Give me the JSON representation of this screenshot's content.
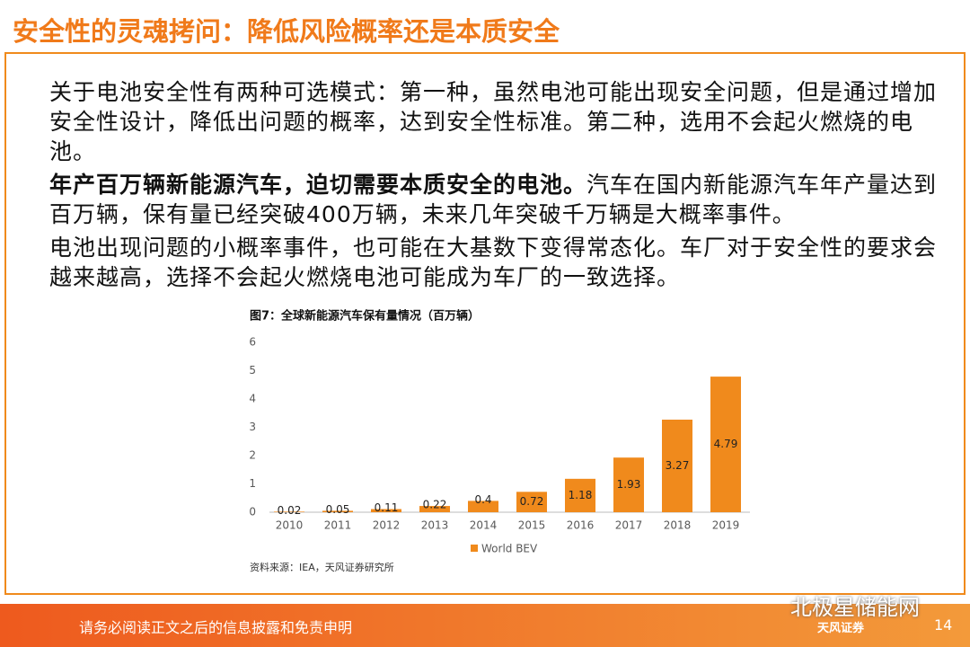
{
  "header": {
    "title": "安全性的灵魂拷问：降低风险概率还是本质安全"
  },
  "body": {
    "paragraphs": [
      {
        "text": "关于电池安全性有两种可选模式：第一种，虽然电池可能出现安全问题，但是通过增加安全性设计，降低出问题的概率，达到安全性标准。第二种，选用不会起火燃烧的电池。"
      },
      {
        "bold": "年产百万辆新能源汽车，迫切需要本质安全的电池。",
        "text": "汽车在国内新能源汽车年产量达到百万辆，保有量已经突破400万辆，未来几年突破千万辆是大概率事件。"
      },
      {
        "text": "电池出现问题的小概率事件，也可能在大基数下变得常态化。车厂对于安全性的要求会越来越高，选择不会起火燃烧电池可能成为车厂的一致选择。"
      }
    ]
  },
  "chart_data": {
    "type": "bar",
    "title": "图7：全球新能源汽车保有量情况（百万辆）",
    "categories": [
      "2010",
      "2011",
      "2012",
      "2013",
      "2014",
      "2015",
      "2016",
      "2017",
      "2018",
      "2019"
    ],
    "series": [
      {
        "name": "World BEV",
        "color": "#F08A1C",
        "values": [
          0.02,
          0.05,
          0.11,
          0.22,
          0.4,
          0.72,
          1.18,
          1.93,
          3.27,
          4.79
        ]
      }
    ],
    "ylim": [
      0,
      6
    ],
    "yticks": [
      0,
      1,
      2,
      3,
      4,
      5,
      6
    ],
    "grid": false,
    "source": "资料来源：IEA，天风证券研究所"
  },
  "footer": {
    "disclaimer": "请务必阅读正文之后的信息披露和免责申明",
    "page": 14,
    "watermark": "北极星储能网",
    "logo": "天风证券"
  }
}
